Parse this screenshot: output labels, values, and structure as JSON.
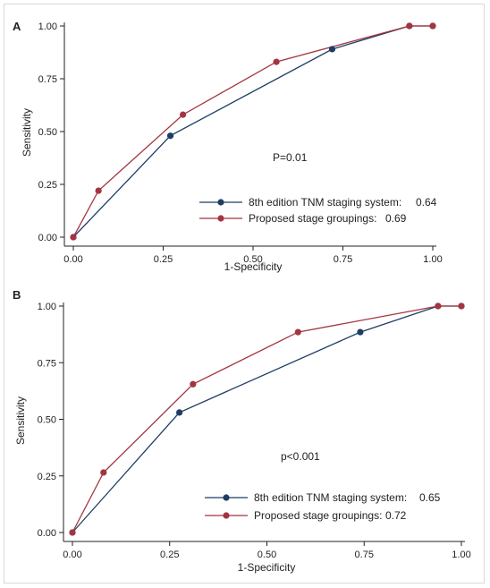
{
  "chart_data": [
    {
      "type": "line",
      "panel_label": "A",
      "xlabel": "1-Specificity",
      "ylabel": "Sensitivity",
      "xlim": [
        0,
        1
      ],
      "ylim": [
        0,
        1
      ],
      "xticks": [
        "0.00",
        "0.25",
        "0.50",
        "0.75",
        "1.00"
      ],
      "yticks": [
        "0.00",
        "0.25",
        "0.50",
        "0.75",
        "1.00"
      ],
      "annotation": "P=0.01",
      "legend_position": "bottom-right",
      "series": [
        {
          "name": "8th edition TNM staging system:",
          "value_label": "0.64",
          "color": "#1f3d64",
          "x": [
            0.0,
            0.27,
            0.72,
            0.935,
            1.0
          ],
          "y": [
            0.0,
            0.48,
            0.89,
            1.0,
            1.0
          ]
        },
        {
          "name": "Proposed stage groupings:",
          "value_label": "0.69",
          "color": "#a2353f",
          "x": [
            0.0,
            0.07,
            0.305,
            0.565,
            0.935,
            1.0
          ],
          "y": [
            0.0,
            0.22,
            0.58,
            0.83,
            1.0,
            1.0
          ]
        }
      ]
    },
    {
      "type": "line",
      "panel_label": "B",
      "xlabel": "1-Specificity",
      "ylabel": "Sensitivity",
      "xlim": [
        0,
        1
      ],
      "ylim": [
        0,
        1
      ],
      "xticks": [
        "0.00",
        "0.25",
        "0.50",
        "0.75",
        "1.00"
      ],
      "yticks": [
        "0.00",
        "0.25",
        "0.50",
        "0.75",
        "1.00"
      ],
      "annotation": "p<0.001",
      "legend_position": "bottom-right",
      "series": [
        {
          "name": "8th edition TNM staging system:",
          "value_label": "0.65",
          "color": "#1f3d64",
          "x": [
            0.0,
            0.275,
            0.74,
            0.94,
            1.0
          ],
          "y": [
            0.0,
            0.53,
            0.885,
            1.0,
            1.0
          ]
        },
        {
          "name": "Proposed stage groupings:",
          "value_label": "0.72",
          "color": "#a2353f",
          "x": [
            0.0,
            0.08,
            0.31,
            0.58,
            0.94,
            1.0
          ],
          "y": [
            0.0,
            0.265,
            0.655,
            0.885,
            1.0,
            1.0
          ]
        }
      ]
    }
  ]
}
